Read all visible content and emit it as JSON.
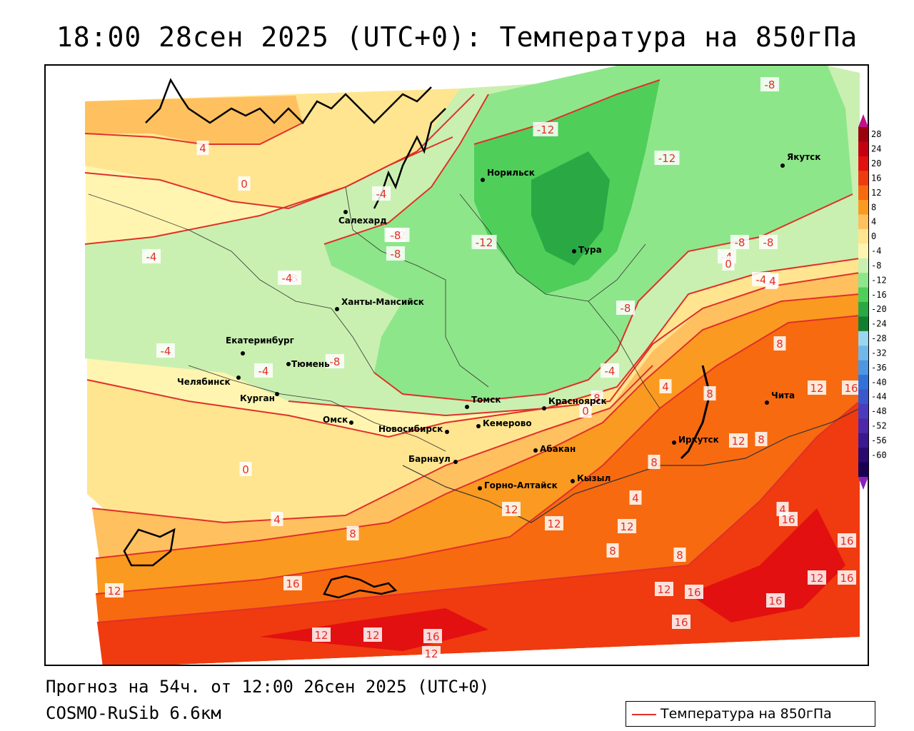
{
  "title": "18:00 28сен 2025 (UTC+0): Температура на 850гПа",
  "footer": {
    "forecast": "Прогноз на 54ч. от 12:00 26сен 2025 (UTC+0)",
    "model": "COSMO-RuSib 6.6км"
  },
  "legend": {
    "label": "Температура на 850гПа",
    "line_color": "#e0302a"
  },
  "colorbar": {
    "ticks": [
      "28",
      "24",
      "20",
      "16",
      "12",
      "8",
      "4",
      "0",
      "-4",
      "-8",
      "-12",
      "-16",
      "-20",
      "-24",
      "-28",
      "-32",
      "-36",
      "-40",
      "-44",
      "-48",
      "-52",
      "-56",
      "-60"
    ],
    "colors": [
      "#9a0010",
      "#c40010",
      "#e21010",
      "#f03a10",
      "#f76a10",
      "#fb9a20",
      "#ffc060",
      "#ffe590",
      "#fff5b0",
      "#c9f0b0",
      "#8ee68a",
      "#4fce5a",
      "#2aa844",
      "#108030",
      "#9ad6ef",
      "#70b8ea",
      "#4c96e2",
      "#3272d8",
      "#3a58cc",
      "#4a3cbc",
      "#4c28a8",
      "#3a1890",
      "#2a0a70",
      "#1a0050"
    ],
    "top_arrow_color": "#c0108a",
    "bottom_arrow_color": "#8a20c0"
  },
  "cities": [
    {
      "name": "Норильск"
    },
    {
      "name": "Якутск"
    },
    {
      "name": "Салехард"
    },
    {
      "name": "Тура"
    },
    {
      "name": "Ханты-Мансийск"
    },
    {
      "name": "Екатеринбург"
    },
    {
      "name": "Тюмень"
    },
    {
      "name": "Челябинск"
    },
    {
      "name": "Курган"
    },
    {
      "name": "Омск"
    },
    {
      "name": "Новосибирск"
    },
    {
      "name": "Томск"
    },
    {
      "name": "Кемерово"
    },
    {
      "name": "Красноярск"
    },
    {
      "name": "Абакан"
    },
    {
      "name": "Барнаул"
    },
    {
      "name": "Горно-Алтайск"
    },
    {
      "name": "Кызыл"
    },
    {
      "name": "Иркутск"
    },
    {
      "name": "Чита"
    }
  ],
  "isotherm_labels": [
    "4",
    "0",
    "-4",
    "-8",
    "-12",
    "-8",
    "-12",
    "-8",
    "-8",
    "-4",
    "-4",
    "-8",
    "-12",
    "-12",
    "-8",
    "-4",
    "0",
    "-4",
    "4",
    "4",
    "8",
    "12",
    "8",
    "4",
    "0",
    "-4",
    "-8",
    "-4",
    "-8",
    "-4",
    "0",
    "4",
    "8",
    "12",
    "16",
    "12",
    "16",
    "12",
    "12",
    "16",
    "8",
    "4",
    "8",
    "12",
    "16",
    "16",
    "12",
    "12",
    "16",
    "12",
    "16",
    "16",
    "12",
    "8",
    "8",
    "8",
    "12",
    "16",
    "4"
  ],
  "colors": {
    "land_warm": "#ffe590",
    "land_mild": "#fff5b0",
    "cold1": "#c9f0b0",
    "cold2": "#8ee68a",
    "cold3": "#4fce5a",
    "cold4": "#2aa844",
    "warm1": "#ffc060",
    "warm2": "#fb9a20",
    "warm3": "#f76a10",
    "warm4": "#f03a10",
    "warm5": "#e21010",
    "isotherm": "#e0302a"
  }
}
